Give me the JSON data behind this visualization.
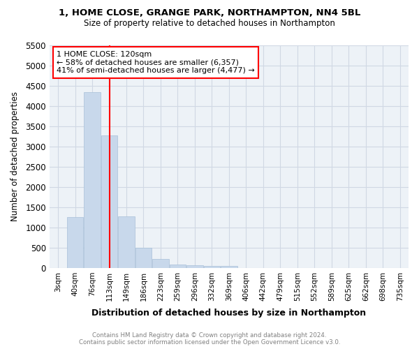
{
  "title": "1, HOME CLOSE, GRANGE PARK, NORTHAMPTON, NN4 5BL",
  "subtitle": "Size of property relative to detached houses in Northampton",
  "xlabel": "Distribution of detached houses by size in Northampton",
  "ylabel": "Number of detached properties",
  "bar_color": "#c8d8eb",
  "bar_edgecolor": "#a8c0d8",
  "categories": [
    "3sqm",
    "40sqm",
    "76sqm",
    "113sqm",
    "149sqm",
    "186sqm",
    "223sqm",
    "259sqm",
    "296sqm",
    "332sqm",
    "369sqm",
    "406sqm",
    "442sqm",
    "479sqm",
    "515sqm",
    "552sqm",
    "589sqm",
    "625sqm",
    "662sqm",
    "698sqm",
    "735sqm"
  ],
  "values": [
    0,
    1250,
    4350,
    3280,
    1280,
    490,
    220,
    90,
    70,
    50,
    50,
    0,
    0,
    0,
    0,
    0,
    0,
    0,
    0,
    0,
    0
  ],
  "ylim": [
    0,
    5500
  ],
  "yticks": [
    0,
    500,
    1000,
    1500,
    2000,
    2500,
    3000,
    3500,
    4000,
    4500,
    5000,
    5500
  ],
  "red_line_x": 3.0,
  "annotation_line1": "1 HOME CLOSE: 120sqm",
  "annotation_line2": "← 58% of detached houses are smaller (6,357)",
  "annotation_line3": "41% of semi-detached houses are larger (4,477) →",
  "footer": "Contains HM Land Registry data © Crown copyright and database right 2024.\nContains public sector information licensed under the Open Government Licence v3.0.",
  "grid_color": "#d0d8e4",
  "bg_color": "#edf2f7"
}
